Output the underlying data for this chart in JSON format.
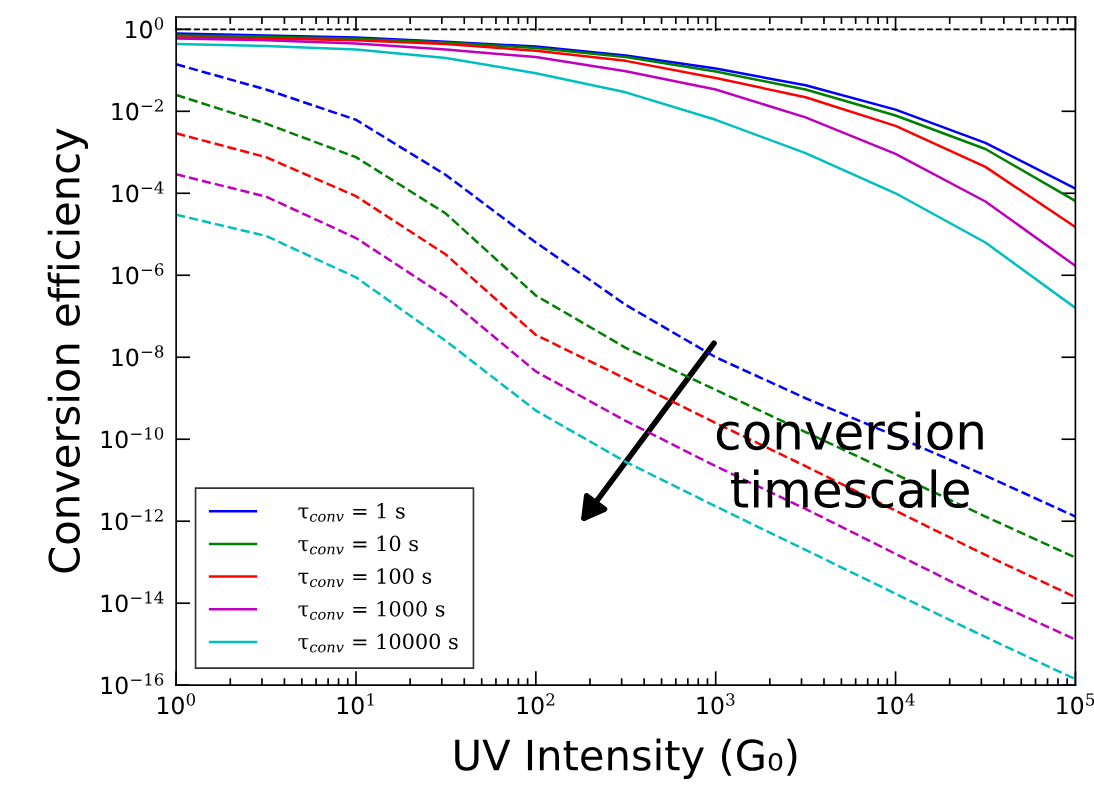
{
  "chart_data": {
    "type": "line",
    "xlabel": "UV Intensity (G₀)",
    "ylabel": "Conversion efficiency",
    "annotations": [
      "conversion\ntimescale"
    ],
    "log": "xy",
    "xlim": [
      1,
      100000
    ],
    "ylim": [
      1e-16,
      2
    ],
    "xticks": [
      {
        "value": 1,
        "label": "10$^{0}$"
      },
      {
        "value": 10,
        "label": "10$^{1}$"
      },
      {
        "value": 100,
        "label": "10$^{2}$"
      },
      {
        "value": 1000,
        "label": "10$^{3}$"
      },
      {
        "value": 10000,
        "label": "10$^{4}$"
      },
      {
        "value": 100000,
        "label": "10$^{5}$"
      }
    ],
    "yticks": [
      {
        "value": 1,
        "label": "10$^{0}$"
      },
      {
        "value": 0.01,
        "label": "10$^{−2}$"
      },
      {
        "value": 0.0001,
        "label": "10$^{−4}$"
      },
      {
        "value": 1e-06,
        "label": "10$^{−6}$"
      },
      {
        "value": 1e-08,
        "label": "10$^{−8}$"
      },
      {
        "value": 1e-10,
        "label": "10$^{−10}$"
      },
      {
        "value": 1e-12,
        "label": "10$^{−12}$"
      },
      {
        "value": 1e-14,
        "label": "10$^{−14}$"
      },
      {
        "value": 1e-16,
        "label": "10$^{−16}$"
      }
    ],
    "x": [
      1,
      3.16,
      10,
      31.6,
      100,
      316,
      1000,
      3160,
      10000,
      31600,
      100000
    ],
    "grid": false,
    "legend": "bottom left",
    "marker": "none",
    "ref_lines": [
      {
        "axis": "y",
        "value": 1,
        "color": "#000000",
        "line_style": "dashed"
      }
    ],
    "series": [
      {
        "name": "τ$_{conv}$ = 1 s",
        "color": "#0000ff",
        "line_style": "solid",
        "values": [
          0.79,
          0.71,
          0.63,
          0.5,
          0.38,
          0.23,
          0.11,
          0.043,
          0.011,
          0.0017,
          0.00013
        ]
      },
      {
        "name": "τ$_{conv}$ = 10 s",
        "color": "#008000",
        "line_style": "solid",
        "values": [
          0.71,
          0.66,
          0.59,
          0.48,
          0.35,
          0.21,
          0.093,
          0.034,
          0.0079,
          0.0012,
          6.5e-05
        ]
      },
      {
        "name": "τ$_{conv}$ = 100 s",
        "color": "#ff0000",
        "line_style": "solid",
        "values": [
          0.63,
          0.6,
          0.54,
          0.44,
          0.3,
          0.17,
          0.065,
          0.022,
          0.0044,
          0.00044,
          1.5e-05
        ]
      },
      {
        "name": "τ$_{conv}$ = 1000 s",
        "color": "#bf00bf",
        "line_style": "solid",
        "values": [
          0.6,
          0.54,
          0.45,
          0.32,
          0.21,
          0.095,
          0.034,
          0.0071,
          0.00091,
          6.3e-05,
          1.7e-06
        ]
      },
      {
        "name": "τ$_{conv}$ = 10000 s",
        "color": "#00bfbf",
        "line_style": "solid",
        "values": [
          0.44,
          0.39,
          0.32,
          0.2,
          0.085,
          0.029,
          0.0062,
          0.00095,
          0.0001,
          6.3e-06,
          1.6e-07
        ]
      },
      {
        "color": "#0000ff",
        "line_style": "dashed",
        "values": [
          0.14,
          0.034,
          0.0062,
          0.00028,
          6.3e-06,
          1.9e-07,
          1e-08,
          1e-09,
          1.2e-10,
          1.3e-11,
          1.3e-12
        ]
      },
      {
        "color": "#008000",
        "line_style": "dashed",
        "values": [
          0.025,
          0.005,
          0.00076,
          3.2e-05,
          3.2e-07,
          1.7e-08,
          1.6e-09,
          1.5e-10,
          1.4e-11,
          1.3e-12,
          1.3e-13
        ]
      },
      {
        "color": "#ff0000",
        "line_style": "dashed",
        "values": [
          0.0029,
          0.00076,
          8.5e-05,
          3.2e-06,
          3.5e-08,
          3e-09,
          2.5e-10,
          2.2e-11,
          1.8e-12,
          1.5e-13,
          1.4e-14
        ]
      },
      {
        "color": "#bf00bf",
        "line_style": "dashed",
        "values": [
          0.00029,
          8.3e-05,
          8.1e-06,
          3e-07,
          4.5e-09,
          2.8e-10,
          2.2e-11,
          2e-12,
          1.6e-13,
          1.3e-14,
          1.3e-15
        ]
      },
      {
        "color": "#00bfbf",
        "line_style": "dashed",
        "values": [
          3e-05,
          9.1e-06,
          8.9e-07,
          2.5e-08,
          5e-10,
          2.8e-11,
          2.3e-12,
          2e-13,
          1.7e-14,
          1.5e-15,
          1.4e-16
        ]
      }
    ]
  }
}
